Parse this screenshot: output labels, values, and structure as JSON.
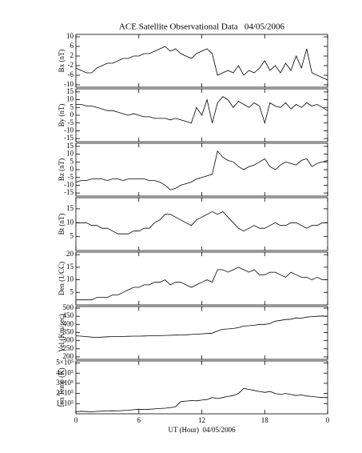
{
  "chart_data": [
    {
      "type": "line",
      "title": "ACE Satellite Observational Data   04/05/2006",
      "ylabel": "Bx (nT)",
      "color": "#000000",
      "x": [
        0,
        0.5,
        1,
        1.5,
        2,
        2.5,
        3,
        3.5,
        4,
        4.5,
        5,
        5.5,
        6,
        6.5,
        7,
        7.5,
        8,
        8.5,
        9,
        9.5,
        10,
        10.5,
        11,
        11.5,
        12,
        12.5,
        13,
        13.5,
        14,
        14.5,
        15,
        15.5,
        16,
        16.5,
        17,
        17.5,
        18,
        18.5,
        19,
        19.5,
        20,
        20.5,
        21,
        21.5,
        22,
        22.5,
        23,
        23.5,
        24
      ],
      "values": [
        -3,
        -4,
        -5,
        -5,
        -3,
        -2,
        -1,
        -1,
        0,
        1,
        1,
        2,
        2,
        3,
        3,
        4,
        5,
        6,
        4,
        5,
        3,
        2,
        1,
        3,
        4,
        5,
        3,
        -6,
        -5,
        -4,
        -5,
        -2,
        -6,
        -4,
        -5,
        -3,
        0,
        -4,
        -2,
        -5,
        -1,
        -4,
        2,
        -3,
        5,
        -5,
        -6,
        -7,
        -8
      ],
      "xlim": [
        0,
        24
      ],
      "xticks": [
        0,
        6,
        12,
        18,
        {
          "value": 24,
          "label": "0"
        }
      ],
      "ylim": [
        -11,
        11
      ],
      "yticks": [
        10,
        6,
        2,
        -2,
        -6,
        -10
      ]
    },
    {
      "type": "line",
      "ylabel": "By (nT)",
      "color": "#000000",
      "x": [
        0,
        0.5,
        1,
        1.5,
        2,
        2.5,
        3,
        3.5,
        4,
        4.5,
        5,
        5.5,
        6,
        6.5,
        7,
        7.5,
        8,
        8.5,
        9,
        9.5,
        10,
        10.5,
        11,
        11.5,
        12,
        12.5,
        13,
        13.5,
        14,
        14.5,
        15,
        15.5,
        16,
        16.5,
        17,
        17.5,
        18,
        18.5,
        19,
        19.5,
        20,
        20.5,
        21,
        21.5,
        22,
        22.5,
        23,
        23.5,
        24
      ],
      "values": [
        7,
        7,
        6,
        6,
        5,
        4,
        3,
        3,
        2,
        1,
        0,
        1,
        0,
        -1,
        -1,
        -2,
        -2,
        -2,
        -3,
        -2,
        -3,
        -4,
        -5,
        5,
        0,
        10,
        -5,
        8,
        12,
        10,
        5,
        9,
        7,
        5,
        8,
        6,
        -5,
        8,
        6,
        5,
        8,
        4,
        7,
        5,
        8,
        6,
        7,
        5,
        3
      ],
      "xlim": [
        0,
        24
      ],
      "xticks": [
        0,
        6,
        12,
        18,
        {
          "value": 24,
          "label": "0"
        }
      ],
      "ylim": [
        -17,
        17
      ],
      "yticks": [
        15,
        10,
        5,
        0,
        -5,
        -10,
        -15
      ]
    },
    {
      "type": "line",
      "ylabel": "Bz (nT)",
      "color": "#000000",
      "x": [
        0,
        0.5,
        1,
        1.5,
        2,
        2.5,
        3,
        3.5,
        4,
        4.5,
        5,
        5.5,
        6,
        6.5,
        7,
        7.5,
        8,
        8.5,
        9,
        9.5,
        10,
        10.5,
        11,
        11.5,
        12,
        12.5,
        13,
        13.5,
        14,
        14.5,
        15,
        15.5,
        16,
        16.5,
        17,
        17.5,
        18,
        18.5,
        19,
        19.5,
        20,
        20.5,
        21,
        21.5,
        22,
        22.5,
        23,
        23.5,
        24
      ],
      "values": [
        -8,
        -7,
        -7,
        -6,
        -6,
        -6,
        -7,
        -6,
        -6,
        -7,
        -6,
        -6,
        -6,
        -6,
        -7,
        -7,
        -8,
        -10,
        -13,
        -12,
        -10,
        -9,
        -8,
        -6,
        -5,
        -4,
        -3,
        12,
        8,
        6,
        5,
        2,
        0,
        2,
        3,
        5,
        7,
        2,
        0,
        3,
        5,
        4,
        3,
        6,
        7,
        2,
        4,
        5,
        6
      ],
      "xlim": [
        0,
        24
      ],
      "xticks": [
        0,
        6,
        12,
        18,
        {
          "value": 24,
          "label": "0"
        }
      ],
      "ylim": [
        -17,
        17
      ],
      "yticks": [
        15,
        10,
        5,
        0,
        -5,
        -10,
        -15
      ]
    },
    {
      "type": "line",
      "ylabel": "Bt (nT)",
      "color": "#000000",
      "x": [
        0,
        0.5,
        1,
        1.5,
        2,
        2.5,
        3,
        3.5,
        4,
        4.5,
        5,
        5.5,
        6,
        6.5,
        7,
        7.5,
        8,
        8.5,
        9,
        9.5,
        10,
        10.5,
        11,
        11.5,
        12,
        12.5,
        13,
        13.5,
        14,
        14.5,
        15,
        15.5,
        16,
        16.5,
        17,
        17.5,
        18,
        18.5,
        19,
        19.5,
        20,
        20.5,
        21,
        21.5,
        22,
        22.5,
        23,
        23.5,
        24
      ],
      "values": [
        10,
        10,
        10,
        9,
        9,
        8,
        8,
        7,
        6,
        6,
        6,
        7,
        7,
        8,
        8,
        10,
        11,
        13,
        13,
        12,
        11,
        10,
        9,
        11,
        12,
        13,
        14,
        13,
        14,
        12,
        10,
        8,
        7,
        8,
        9,
        8,
        8,
        9,
        10,
        9,
        9,
        10,
        10,
        9,
        8,
        9,
        9,
        10,
        10
      ],
      "xlim": [
        0,
        24
      ],
      "xticks": [
        0,
        6,
        12,
        18,
        {
          "value": 24,
          "label": "0"
        }
      ],
      "ylim": [
        0,
        19
      ],
      "yticks": [
        15,
        10,
        5
      ]
    },
    {
      "type": "line",
      "ylabel": "Den (1/CC)",
      "color": "#000000",
      "x": [
        0,
        0.5,
        1,
        1.5,
        2,
        2.5,
        3,
        3.5,
        4,
        4.5,
        5,
        5.5,
        6,
        6.5,
        7,
        7.5,
        8,
        8.5,
        9,
        9.5,
        10,
        10.5,
        11,
        11.5,
        12,
        12.5,
        13,
        13.5,
        14,
        14.5,
        15,
        15.5,
        16,
        16.5,
        17,
        17.5,
        18,
        18.5,
        19,
        19.5,
        20,
        20.5,
        21,
        21.5,
        22,
        22.5,
        23,
        23.5,
        24
      ],
      "values": [
        2,
        2,
        2,
        2,
        3,
        3,
        3,
        4,
        4,
        5,
        6,
        7,
        7,
        8,
        8,
        9,
        9,
        10,
        8,
        9,
        9,
        8,
        7,
        8,
        9,
        10,
        9,
        14,
        14,
        13,
        14,
        15,
        14,
        13,
        14,
        12,
        12,
        13,
        13,
        12,
        11,
        13,
        12,
        11,
        11,
        10,
        11,
        10,
        10
      ],
      "xlim": [
        0,
        24
      ],
      "xticks": [
        0,
        6,
        12,
        18,
        {
          "value": 24,
          "label": "0"
        }
      ],
      "ylim": [
        0,
        21
      ],
      "yticks": [
        20,
        15,
        10,
        5
      ]
    },
    {
      "type": "line",
      "ylabel": "Vel (Km/sec)",
      "color": "#000000",
      "x": [
        0,
        0.5,
        1,
        1.5,
        2,
        2.5,
        3,
        3.5,
        4,
        4.5,
        5,
        5.5,
        6,
        6.5,
        7,
        7.5,
        8,
        8.5,
        9,
        9.5,
        10,
        10.5,
        11,
        11.5,
        12,
        12.5,
        13,
        13.5,
        14,
        14.5,
        15,
        15.5,
        16,
        16.5,
        17,
        17.5,
        18,
        18.5,
        19,
        19.5,
        20,
        20.5,
        21,
        21.5,
        22,
        22.5,
        23,
        23.5,
        24
      ],
      "values": [
        330,
        328,
        325,
        322,
        320,
        322,
        324,
        325,
        325,
        326,
        327,
        328,
        328,
        329,
        330,
        330,
        331,
        332,
        333,
        334,
        335,
        336,
        338,
        340,
        342,
        344,
        346,
        360,
        370,
        372,
        375,
        380,
        390,
        392,
        395,
        400,
        400,
        405,
        420,
        425,
        430,
        432,
        440,
        438,
        445,
        448,
        450,
        452,
        450
      ],
      "xlim": [
        0,
        24
      ],
      "xticks": [
        0,
        6,
        12,
        18,
        {
          "value": 24,
          "label": "0"
        }
      ],
      "ylim": [
        185,
        510
      ],
      "yticks": [
        500,
        450,
        400,
        350,
        300,
        250,
        200
      ]
    },
    {
      "type": "line",
      "ylabel": "Ion Temp (K)",
      "xlabel": "UT (Hour)  04/05/2006",
      "color": "#000000",
      "x": [
        0,
        0.5,
        1,
        1.5,
        2,
        2.5,
        3,
        3.5,
        4,
        4.5,
        5,
        5.5,
        6,
        6.5,
        7,
        7.5,
        8,
        8.5,
        9,
        9.5,
        10,
        10.5,
        11,
        11.5,
        12,
        12.5,
        13,
        13.5,
        14,
        14.5,
        15,
        15.5,
        16,
        16.5,
        17,
        17.5,
        18,
        18.5,
        19,
        19.5,
        20,
        20.5,
        21,
        21.5,
        22,
        22.5,
        23,
        23.5,
        24
      ],
      "values": [
        20000,
        25000,
        22000,
        20000,
        24000,
        26000,
        28000,
        30000,
        28000,
        32000,
        35000,
        40000,
        45000,
        42000,
        45000,
        48000,
        52000,
        55000,
        60000,
        70000,
        120000,
        125000,
        130000,
        128000,
        135000,
        140000,
        160000,
        150000,
        160000,
        170000,
        180000,
        200000,
        250000,
        240000,
        230000,
        220000,
        210000,
        220000,
        200000,
        190000,
        200000,
        190000,
        180000,
        185000,
        175000,
        170000,
        165000,
        160000,
        160000
      ],
      "xlim": [
        0,
        24
      ],
      "xticks": [
        0,
        6,
        12,
        18,
        {
          "value": 24,
          "label": "0"
        }
      ],
      "ylim": [
        0,
        520000
      ],
      "yticks": [
        {
          "value": 500000,
          "label": "5×10⁵"
        },
        {
          "value": 400000,
          "label": "4×10⁵"
        },
        {
          "value": 300000,
          "label": "3×10⁵"
        },
        {
          "value": 200000,
          "label": "2×10⁵"
        },
        {
          "value": 100000,
          "label": "1×10⁵"
        }
      ]
    }
  ]
}
